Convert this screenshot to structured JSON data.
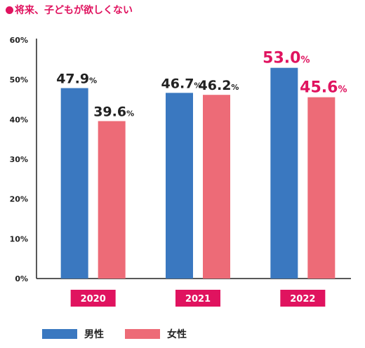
{
  "title": "将来、子どもが欲しくない",
  "chart_data": {
    "type": "bar",
    "categories": [
      "2020",
      "2021",
      "2022"
    ],
    "series": [
      {
        "name": "男性",
        "values": [
          47.9,
          46.7,
          53.0
        ],
        "color": "#3a78c0"
      },
      {
        "name": "女性",
        "values": [
          39.6,
          46.2,
          45.6
        ],
        "color": "#ed6b77"
      }
    ],
    "value_labels": [
      [
        "47.9",
        "46.7",
        "53.0"
      ],
      [
        "39.6",
        "46.2",
        "45.6"
      ]
    ],
    "value_label_unit": "%",
    "highlight_category": "2022",
    "highlight_color": "#e0135f",
    "label_color": "#222222",
    "category_badge_color": "#e0135f",
    "yticks": [
      "0%",
      "10%",
      "20%",
      "30%",
      "40%",
      "50%",
      "60%"
    ],
    "ylim": [
      0,
      60
    ],
    "grid": false,
    "legend_position": "bottom-left"
  }
}
